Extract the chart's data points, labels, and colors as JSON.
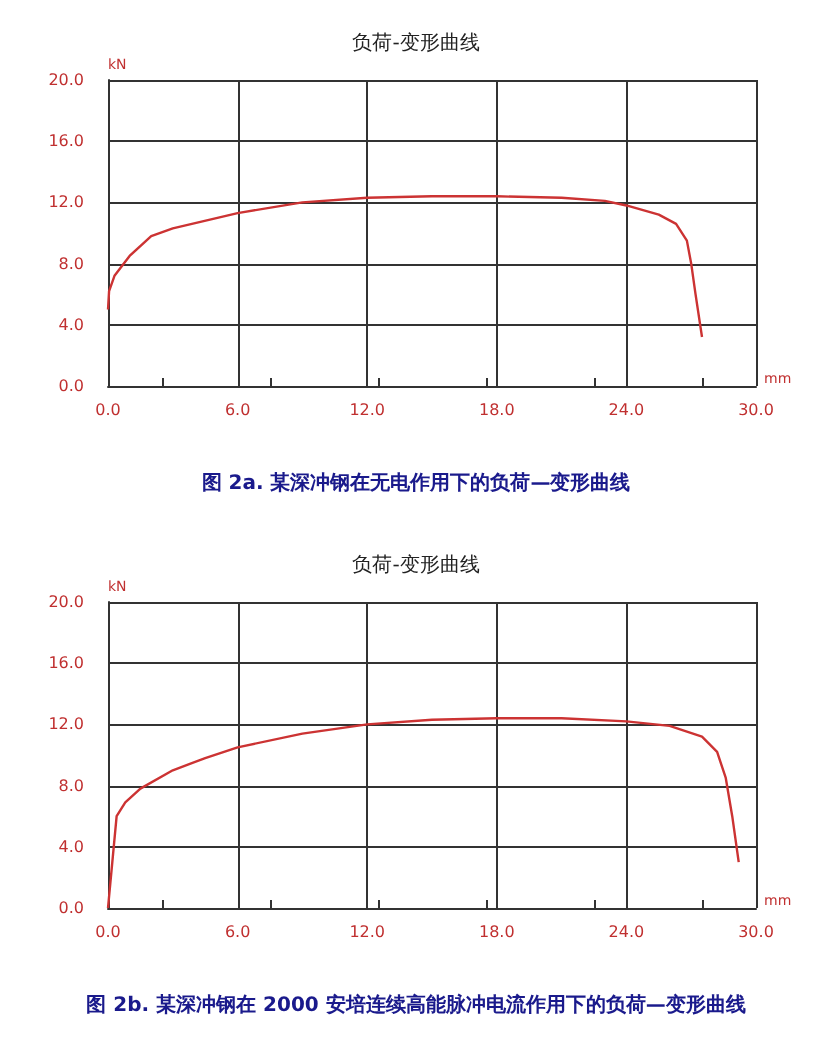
{
  "chart_data": [
    {
      "type": "line",
      "title": "负荷-变形曲线",
      "xlabel": "mm",
      "ylabel": "kN",
      "annotations": [
        "图 2a. 某深冲钢在无电作用下的负荷—变形曲线"
      ],
      "xlim": [
        0,
        30
      ],
      "xticks": [
        {
          "value": 0,
          "label": "0.0"
        },
        {
          "value": 6,
          "label": "6.0"
        },
        {
          "value": 12,
          "label": "12.0"
        },
        {
          "value": 18,
          "label": "18.0"
        },
        {
          "value": 24,
          "label": "24.0"
        },
        {
          "value": 30,
          "label": "30.0"
        }
      ],
      "ylim": [
        0,
        20
      ],
      "yticks": [
        {
          "value": 0,
          "label": "0.0"
        },
        {
          "value": 4,
          "label": "4.0"
        },
        {
          "value": 8,
          "label": "8.0"
        },
        {
          "value": 12,
          "label": "12.0"
        },
        {
          "value": 16,
          "label": "16.0"
        },
        {
          "value": 20,
          "label": "20.0"
        }
      ],
      "grid": true,
      "marker": "none",
      "line_style": "solid",
      "series": [
        {
          "color": "#cc3333",
          "x": [
            0,
            0.05,
            0.3,
            1,
            2,
            3,
            6,
            9,
            12,
            15,
            18,
            21,
            23,
            24,
            25.5,
            26.3,
            26.8,
            27,
            27.2,
            27.5
          ],
          "values": [
            5,
            6.2,
            7.2,
            8.5,
            9.8,
            10.3,
            11.3,
            12,
            12.3,
            12.4,
            12.4,
            12.3,
            12.1,
            11.8,
            11.2,
            10.6,
            9.5,
            8,
            6,
            3.2
          ]
        }
      ]
    },
    {
      "type": "line",
      "title": "负荷-变形曲线",
      "xlabel": "mm",
      "ylabel": "kN",
      "annotations": [
        "图 2b. 某深冲钢在 2000 安培连续高能脉冲电流作用下的负荷—变形曲线"
      ],
      "xlim": [
        0,
        30
      ],
      "xticks": [
        {
          "value": 0,
          "label": "0.0"
        },
        {
          "value": 6,
          "label": "6.0"
        },
        {
          "value": 12,
          "label": "12.0"
        },
        {
          "value": 18,
          "label": "18.0"
        },
        {
          "value": 24,
          "label": "24.0"
        },
        {
          "value": 30,
          "label": "30.0"
        }
      ],
      "ylim": [
        0,
        20
      ],
      "yticks": [
        {
          "value": 0,
          "label": "0.0"
        },
        {
          "value": 4,
          "label": "4.0"
        },
        {
          "value": 8,
          "label": "8.0"
        },
        {
          "value": 12,
          "label": "12.0"
        },
        {
          "value": 16,
          "label": "16.0"
        },
        {
          "value": 20,
          "label": "20.0"
        }
      ],
      "grid": true,
      "marker": "none",
      "line_style": "solid",
      "series": [
        {
          "color": "#cc3333",
          "x": [
            0,
            0.2,
            0.4,
            0.8,
            1.5,
            3,
            4.5,
            6,
            9,
            12,
            15,
            18,
            21,
            24,
            26,
            27.5,
            28.2,
            28.6,
            28.9,
            29.2
          ],
          "values": [
            0,
            3,
            6,
            6.9,
            7.8,
            9,
            9.8,
            10.5,
            11.4,
            12,
            12.3,
            12.4,
            12.4,
            12.2,
            11.9,
            11.2,
            10.2,
            8.5,
            6,
            3
          ]
        }
      ]
    }
  ]
}
